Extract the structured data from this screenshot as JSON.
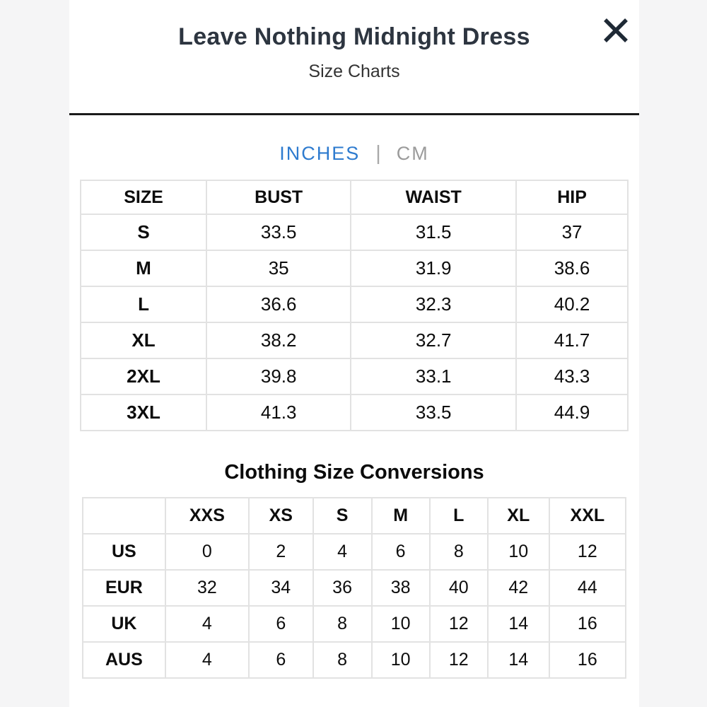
{
  "modal": {
    "title": "Leave Nothing Midnight Dress",
    "subtitle": "Size Charts"
  },
  "tabs": {
    "inches_label": "INCHES",
    "cm_label": "CM",
    "separator": "|",
    "active_tab": "INCHES",
    "active_color": "#2e7bcf",
    "inactive_color": "#9b9b9b"
  },
  "measurement_table": {
    "unit": "INCHES",
    "columns": [
      "SIZE",
      "BUST",
      "WAIST",
      "HIP"
    ],
    "rows": [
      [
        "S",
        "33.5",
        "31.5",
        "37"
      ],
      [
        "M",
        "35",
        "31.9",
        "38.6"
      ],
      [
        "L",
        "36.6",
        "32.3",
        "40.2"
      ],
      [
        "XL",
        "38.2",
        "32.7",
        "41.7"
      ],
      [
        "2XL",
        "39.8",
        "33.1",
        "43.3"
      ],
      [
        "3XL",
        "41.3",
        "33.5",
        "44.9"
      ]
    ]
  },
  "conversion_table": {
    "heading": "Clothing Size Conversions",
    "columns": [
      "",
      "XXS",
      "XS",
      "S",
      "M",
      "L",
      "XL",
      "XXL"
    ],
    "rows": [
      [
        "US",
        "0",
        "2",
        "4",
        "6",
        "8",
        "10",
        "12"
      ],
      [
        "EUR",
        "32",
        "34",
        "36",
        "38",
        "40",
        "42",
        "44"
      ],
      [
        "UK",
        "4",
        "6",
        "8",
        "10",
        "12",
        "14",
        "16"
      ],
      [
        "AUS",
        "4",
        "6",
        "8",
        "10",
        "12",
        "14",
        "16"
      ]
    ]
  },
  "colors": {
    "modal_background": "#ffffff",
    "page_background": "#f5f5f6",
    "divider": "#1b1b1b",
    "table_border": "#e2e2e2",
    "title_text": "#2d3540",
    "close_icon": "#1e2935"
  }
}
